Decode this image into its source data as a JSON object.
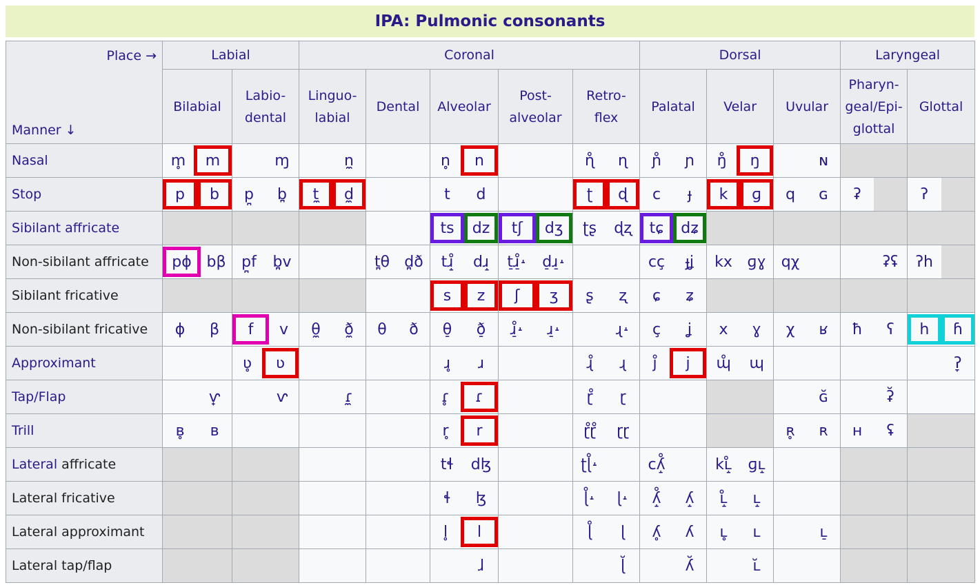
{
  "title": "IPA: Pulmonic consonants",
  "corner": {
    "place": "Place →",
    "manner": "Manner ↓"
  },
  "groups": [
    "Labial",
    "Coronal",
    "Dorsal",
    "Laryngeal"
  ],
  "places": [
    [
      "Bilabial"
    ],
    [
      "Labio-",
      "dental"
    ],
    [
      "Linguo-",
      "labial"
    ],
    [
      "Dental"
    ],
    [
      "Alveolar"
    ],
    [
      "Post-",
      "alveolar"
    ],
    [
      "Retro-",
      "flex"
    ],
    [
      "Palatal"
    ],
    [
      "Velar"
    ],
    [
      "Uvular"
    ],
    [
      "Pharyn-",
      "geal/Epi-",
      "glottal"
    ],
    [
      "Glottal"
    ]
  ],
  "rows": [
    {
      "label": "Nasal",
      "linked": "all",
      "cells": [
        [
          "m̥",
          "m"
        ],
        [
          "",
          "ɱ"
        ],
        [
          "",
          "n̼"
        ],
        null,
        [
          "n̥",
          "n"
        ],
        null,
        [
          "ɳ̊",
          "ɳ"
        ],
        [
          "ɲ̊",
          "ɲ"
        ],
        [
          "ŋ̊",
          "ŋ"
        ],
        [
          "",
          "ɴ"
        ],
        "GRAY",
        "GRAY"
      ],
      "highlights": {
        "0.1": "red",
        "4.1": "red",
        "8.1": "red"
      },
      "merge": [
        [
          3,
          5
        ]
      ]
    },
    {
      "label": "Stop",
      "linked": "all",
      "cells": [
        [
          "p",
          "b"
        ],
        [
          "p̪",
          "b̪"
        ],
        [
          "t̼",
          "d̼"
        ],
        null,
        [
          "t",
          "d"
        ],
        null,
        [
          "ʈ",
          "ɖ"
        ],
        [
          "c",
          "ɟ"
        ],
        [
          "k",
          "ɡ"
        ],
        [
          "q",
          "ɢ"
        ],
        [
          "ʡ",
          "GRAYHALF"
        ],
        [
          "ʔ",
          "GRAYHALF"
        ]
      ],
      "highlights": {
        "0.0": "red",
        "0.1": "red",
        "2.0": "red",
        "2.1": "red",
        "6.0": "red",
        "6.1": "red",
        "8.0": "red",
        "8.1": "red"
      },
      "merge": [
        [
          3,
          5
        ]
      ]
    },
    {
      "label": "Sibilant affricate",
      "linked": "all",
      "cells": [
        "GRAY",
        "GRAY",
        "GRAY",
        null,
        [
          "ts",
          "dz"
        ],
        [
          "tʃ",
          "dʒ"
        ],
        [
          "ʈʂ",
          "ɖʐ"
        ],
        [
          "tɕ",
          "dʑ"
        ],
        "GRAY",
        "GRAY",
        "GRAY",
        "GRAY"
      ],
      "highlights": {
        "4.0": "purple",
        "4.1": "green",
        "5.0": "purple",
        "5.1": "green",
        "7.0": "purple",
        "7.1": "green"
      },
      "merge": []
    },
    {
      "label": "Non-sibilant affricate",
      "linked": "none",
      "cells": [
        [
          "pɸ",
          "bβ"
        ],
        [
          "p̪f",
          "b̪v"
        ],
        null,
        [
          "t̪θ",
          "d̪ð"
        ],
        [
          "tɹ̝̊",
          "dɹ̝"
        ],
        [
          "t̠ɹ̠̊˔",
          "d̠ɹ̠˔"
        ],
        null,
        [
          "cç",
          "ɟʝ"
        ],
        [
          "kx",
          "ɡɣ"
        ],
        [
          "qχ",
          ""
        ],
        [
          "",
          "ʡʢ"
        ],
        [
          "ʔh",
          "GRAYHALF"
        ]
      ],
      "highlights": {
        "0.0": "magenta"
      },
      "merge": []
    },
    {
      "label": "Sibilant fricative",
      "linked": "none",
      "cells": [
        "GRAY",
        "GRAY",
        "GRAY",
        null,
        [
          "s",
          "z"
        ],
        [
          "ʃ",
          "ʒ"
        ],
        [
          "ʂ",
          "ʐ"
        ],
        [
          "ɕ",
          "ʑ"
        ],
        "GRAY",
        "GRAY",
        "GRAY",
        "GRAY"
      ],
      "highlights": {
        "4.0": "red",
        "4.1": "red",
        "5.0": "red",
        "5.1": "red"
      },
      "merge": []
    },
    {
      "label": "Non-sibilant fricative",
      "linked": "none",
      "cells": [
        [
          "ɸ",
          "β"
        ],
        [
          "f",
          "v"
        ],
        [
          "θ̼",
          "ð̼"
        ],
        [
          "θ",
          "ð"
        ],
        [
          "θ̠",
          "ð̠"
        ],
        [
          "ɹ̠̊˔",
          "ɹ̠˔"
        ],
        [
          "",
          "ɻ˔"
        ],
        [
          "ç",
          "ʝ"
        ],
        [
          "x",
          "ɣ"
        ],
        [
          "χ",
          "ʁ"
        ],
        [
          "ħ",
          "ʕ"
        ],
        [
          "h",
          "ɦ"
        ]
      ],
      "highlights": {
        "1.0": "magenta",
        "11.0": "cyan",
        "11.1": "cyan"
      },
      "merge": []
    },
    {
      "label": "Approximant",
      "linked": "all",
      "cells": [
        null,
        [
          "ʋ̥",
          "ʋ"
        ],
        null,
        null,
        [
          "ɹ̥",
          "ɹ"
        ],
        null,
        [
          "ɻ̊",
          "ɻ"
        ],
        [
          "j̊",
          "j"
        ],
        [
          "ɰ̊",
          "ɰ"
        ],
        null,
        null,
        [
          "",
          "ʔ̞"
        ]
      ],
      "highlights": {
        "1.1": "red",
        "7.1": "red"
      },
      "merge": []
    },
    {
      "label": "Tap/Flap",
      "linked": "all",
      "cells": [
        [
          "",
          "ⱱ̟"
        ],
        [
          "",
          "ⱱ"
        ],
        [
          "",
          "ɾ̼"
        ],
        null,
        [
          "ɾ̥",
          "ɾ"
        ],
        null,
        [
          "ɽ̊",
          "ɽ"
        ],
        null,
        "GRAY",
        [
          "",
          "ɢ̆"
        ],
        [
          "",
          "ʡ̆"
        ],
        null
      ],
      "highlights": {
        "4.1": "red"
      },
      "merge": []
    },
    {
      "label": "Trill",
      "linked": "all",
      "cells": [
        [
          "ʙ̥",
          "ʙ"
        ],
        null,
        null,
        null,
        [
          "r̥",
          "r"
        ],
        null,
        [
          "ɽ̊ɽ̊",
          "ɽɽ"
        ],
        null,
        "GRAY",
        [
          "ʀ̥",
          "ʀ"
        ],
        [
          "ʜ",
          "ʢ"
        ],
        "GRAY"
      ],
      "highlights": {
        "4.1": "red"
      },
      "merge": []
    },
    {
      "label": "Lateral affricate",
      "linked": "first",
      "cells": [
        "GRAY",
        "GRAY",
        null,
        null,
        [
          "tɬ",
          "dɮ"
        ],
        null,
        [
          "ʈɭ̊˔",
          ""
        ],
        [
          "cʎ̝̊",
          ""
        ],
        [
          "kʟ̝̊",
          "ɡʟ̝"
        ],
        null,
        "GRAY",
        "GRAY"
      ],
      "highlights": {},
      "merge": []
    },
    {
      "label": "Lateral fricative",
      "linked": "none",
      "cells": [
        "GRAY",
        "GRAY",
        null,
        null,
        [
          "ɬ",
          "ɮ"
        ],
        null,
        [
          "ɭ̊˔",
          "ɭ˔"
        ],
        [
          "ʎ̝̊",
          "ʎ̝"
        ],
        [
          "ʟ̝̊",
          "ʟ̝"
        ],
        null,
        "GRAY",
        "GRAY"
      ],
      "highlights": {},
      "merge": []
    },
    {
      "label": "Lateral approximant",
      "linked": "none",
      "cells": [
        "GRAY",
        "GRAY",
        null,
        null,
        [
          "l̥",
          "l"
        ],
        null,
        [
          "ɭ̊",
          "ɭ"
        ],
        [
          "ʎ̥",
          "ʎ"
        ],
        [
          "ʟ̥",
          "ʟ"
        ],
        [
          "",
          "ʟ̠"
        ],
        "GRAY",
        "GRAY"
      ],
      "highlights": {
        "4.1": "red"
      },
      "merge": []
    },
    {
      "label": "Lateral tap/flap",
      "linked": "none",
      "cells": [
        "GRAY",
        "GRAY",
        null,
        null,
        [
          "",
          "ɺ"
        ],
        null,
        [
          "",
          "ɭ̆"
        ],
        [
          "",
          "ʎ̆"
        ],
        [
          "",
          "ʟ̆"
        ],
        null,
        "GRAY",
        "GRAY"
      ],
      "highlights": {},
      "merge": []
    }
  ],
  "colors": {
    "red": "#e00000",
    "purple": "#6a1be0",
    "green": "#107a10",
    "magenta": "#e000b0",
    "cyan": "#10d0d8"
  }
}
